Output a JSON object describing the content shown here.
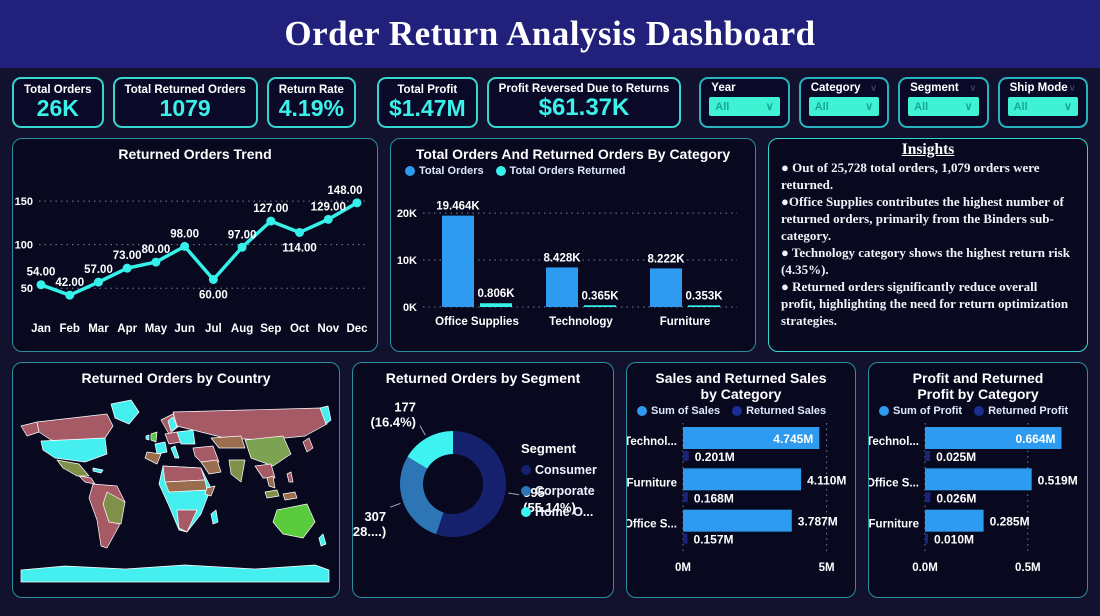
{
  "title": "Order Return Analysis Dashboard",
  "kpis": [
    {
      "label": "Total Orders",
      "value": "26K"
    },
    {
      "label": "Total Returned Orders",
      "value": "1079"
    },
    {
      "label": "Return Rate",
      "value": "4.19%"
    },
    {
      "label": "Total Profit",
      "value": "$1.47M"
    },
    {
      "label": "Profit Reversed Due to Returns",
      "value": "$61.37K"
    }
  ],
  "slicers": [
    {
      "label": "Year",
      "value": "All"
    },
    {
      "label": "Category",
      "value": "All"
    },
    {
      "label": "Segment",
      "value": "All"
    },
    {
      "label": "Ship Mode",
      "value": "All"
    }
  ],
  "insights": {
    "title": "Insights",
    "bullets": [
      "● Out of 25,728 total orders, 1,079 orders were returned.",
      "●Office Supplies contributes the highest number of returned orders, primarily from the Binders sub-category.",
      "● Technology category shows the highest return risk (4.35%).",
      "●  Returned orders significantly reduce overall profit, highlighting the need for return optimization strategies."
    ]
  },
  "colors": {
    "accent_cyan": "#35f1e9",
    "bar_blue": "#2e9bf0",
    "dark_navy_series": "#1a2478",
    "corporate_blue": "#2e75b6",
    "panel_border_teal": "#2b8fa0",
    "title_bar": "#21217c",
    "gridline": "#93aacb"
  },
  "chart_data": [
    {
      "id": "trend",
      "type": "line",
      "title": "Returned Orders Trend",
      "x": [
        "Jan",
        "Feb",
        "Mar",
        "Apr",
        "May",
        "Jun",
        "Jul",
        "Aug",
        "Sep",
        "Oct",
        "Nov",
        "Dec"
      ],
      "values": [
        54,
        42,
        57,
        73,
        80,
        98,
        60,
        97,
        127,
        114,
        129,
        148
      ],
      "data_labels": [
        "54.00",
        "42.00",
        "57.00",
        "73.00",
        "80.00",
        "98.00",
        "60.00",
        "97.00",
        "127.00",
        "114.00",
        "129.00",
        "148.00"
      ],
      "label_below": [
        false,
        false,
        false,
        false,
        false,
        false,
        true,
        false,
        false,
        true,
        false,
        false
      ],
      "yticks": [
        50,
        100,
        150
      ],
      "ytick_labels": [
        "50",
        "100",
        "150"
      ],
      "ylim": [
        25,
        165
      ],
      "line_color": "#35f1e9",
      "grid": "dotted horizontal"
    },
    {
      "id": "category_orders",
      "type": "bar",
      "title": "Total Orders And Returned Orders By Category",
      "categories": [
        "Office Supplies",
        "Technology",
        "Furniture"
      ],
      "series": [
        {
          "name": "Total Orders",
          "color": "#2e9bf0",
          "values": [
            19.464,
            8.428,
            8.222
          ],
          "labels": [
            "19.464K",
            "8.428K",
            "8.222K"
          ]
        },
        {
          "name": "Total Orders Returned",
          "color": "#35f1e9",
          "values": [
            0.806,
            0.365,
            0.353
          ],
          "labels": [
            "0.806K",
            "0.365K",
            "0.353K"
          ]
        }
      ],
      "ytick_vals": [
        0,
        10,
        20
      ],
      "ytick_labels": [
        "0K",
        "10K",
        "20K"
      ],
      "ylim": [
        0,
        23
      ],
      "legend_position": "top-left"
    },
    {
      "id": "country_map",
      "type": "heatmap",
      "title": "Returned Orders by Country",
      "palette": [
        "#a65a66",
        "#46efef",
        "#7f9149",
        "#5bcb3e",
        "#9a6d4e"
      ]
    },
    {
      "id": "segment_donut",
      "type": "pie",
      "title": "Returned Orders by Segment",
      "legend_title": "Segment",
      "slices": [
        {
          "name": "Consumer",
          "value": 595,
          "pct": 55.14,
          "label": "595 (55.14%)",
          "color": "#16216e"
        },
        {
          "name": "Corporate",
          "value": 307,
          "pct": 28.45,
          "label": "307 (28....)",
          "color": "#2e75b6"
        },
        {
          "name": "Home O...",
          "value": 177,
          "pct": 16.4,
          "label": "177 (16.4%)",
          "color": "#3ff2f2"
        }
      ],
      "legend_position": "right"
    },
    {
      "id": "sales",
      "type": "bar",
      "title": "Sales and Returned Sales by Category",
      "orientation": "horizontal",
      "categories": [
        "Technol...",
        "Furniture",
        "Office S..."
      ],
      "series": [
        {
          "name": "Sum of Sales",
          "color": "#2e9bf0",
          "values": [
            4.745,
            4.11,
            3.787
          ],
          "labels": [
            "4.745M",
            "4.110M",
            "3.787M"
          ]
        },
        {
          "name": "Returned Sales",
          "color": "#1a2478",
          "values": [
            0.201,
            0.168,
            0.157
          ],
          "labels": [
            "0.201M",
            "0.168M",
            "0.157M"
          ]
        }
      ],
      "xtick_vals": [
        0,
        5
      ],
      "xtick_labels": [
        "0M",
        "5M"
      ],
      "xlim": [
        0,
        5.5
      ]
    },
    {
      "id": "profit",
      "type": "bar",
      "title": "Profit and Returned Profit by Category",
      "orientation": "horizontal",
      "categories": [
        "Technol...",
        "Office S...",
        "Furniture"
      ],
      "series": [
        {
          "name": "Sum of Profit",
          "color": "#2e9bf0",
          "values": [
            0.664,
            0.519,
            0.285
          ],
          "labels": [
            "0.664M",
            "0.519M",
            "0.285M"
          ]
        },
        {
          "name": "Returned Profit",
          "color": "#1a2478",
          "values": [
            0.025,
            0.026,
            0.01
          ],
          "labels": [
            "0.025M",
            "0.026M",
            "0.010M"
          ]
        }
      ],
      "xtick_vals": [
        0,
        0.5
      ],
      "xtick_labels": [
        "0.0M",
        "0.5M"
      ],
      "xlim": [
        0,
        0.72
      ]
    }
  ]
}
